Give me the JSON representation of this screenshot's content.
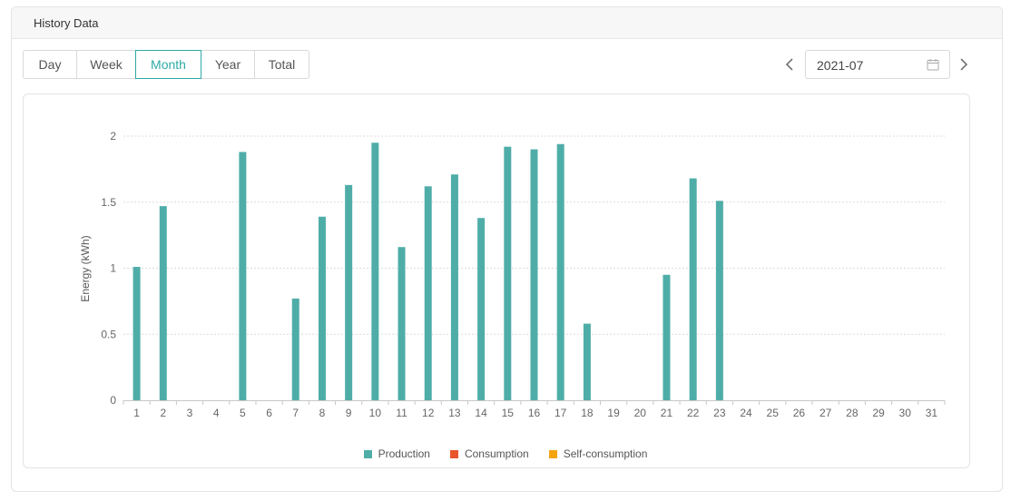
{
  "panel": {
    "title": "History Data"
  },
  "period_tabs": [
    {
      "label": "Day",
      "active": false
    },
    {
      "label": "Week",
      "active": false
    },
    {
      "label": "Month",
      "active": true
    },
    {
      "label": "Year",
      "active": false
    },
    {
      "label": "Total",
      "active": false
    }
  ],
  "date_picker": {
    "value": "2021-07",
    "icons": [
      "chevron-left-icon",
      "calendar-icon",
      "chevron-right-icon"
    ]
  },
  "colors": {
    "accent": "#2eaaa5",
    "production": "#4fada8",
    "consumption": "#e8552a",
    "self_consumption": "#f5a40e"
  },
  "legend": [
    {
      "label": "Production",
      "color": "#4fada8"
    },
    {
      "label": "Consumption",
      "color": "#e8552a"
    },
    {
      "label": "Self-consumption",
      "color": "#f5a40e"
    }
  ],
  "chart_data": {
    "type": "bar",
    "ylabel": "Energy  (kWh)",
    "xlabel": "",
    "ylim": [
      0,
      2
    ],
    "yticks": [
      0,
      0.5,
      1,
      1.5,
      2
    ],
    "ytick_labels": [
      "0",
      "0.5",
      "1",
      "1.5",
      "2"
    ],
    "grid": true,
    "legend_position": "bottom",
    "categories": [
      "1",
      "2",
      "3",
      "4",
      "5",
      "6",
      "7",
      "8",
      "9",
      "10",
      "11",
      "12",
      "13",
      "14",
      "15",
      "16",
      "17",
      "18",
      "19",
      "20",
      "21",
      "22",
      "23",
      "24",
      "25",
      "26",
      "27",
      "28",
      "29",
      "30",
      "31"
    ],
    "series": [
      {
        "name": "Production",
        "values": [
          1.01,
          1.47,
          0,
          0,
          1.88,
          0,
          0.77,
          1.39,
          1.63,
          1.95,
          1.16,
          1.62,
          1.71,
          1.38,
          1.92,
          1.9,
          1.94,
          0.58,
          0,
          0,
          0.95,
          1.68,
          1.51,
          0,
          0,
          0,
          0,
          0,
          0,
          0,
          0
        ]
      },
      {
        "name": "Consumption",
        "values": [
          0,
          0,
          0,
          0,
          0,
          0,
          0,
          0,
          0,
          0,
          0,
          0,
          0,
          0,
          0,
          0,
          0,
          0,
          0,
          0,
          0,
          0,
          0,
          0,
          0,
          0,
          0,
          0,
          0,
          0,
          0
        ]
      },
      {
        "name": "Self-consumption",
        "values": [
          0,
          0,
          0,
          0,
          0,
          0,
          0,
          0,
          0,
          0,
          0,
          0,
          0,
          0,
          0,
          0,
          0,
          0,
          0,
          0,
          0,
          0,
          0,
          0,
          0,
          0,
          0,
          0,
          0,
          0,
          0
        ]
      }
    ]
  }
}
